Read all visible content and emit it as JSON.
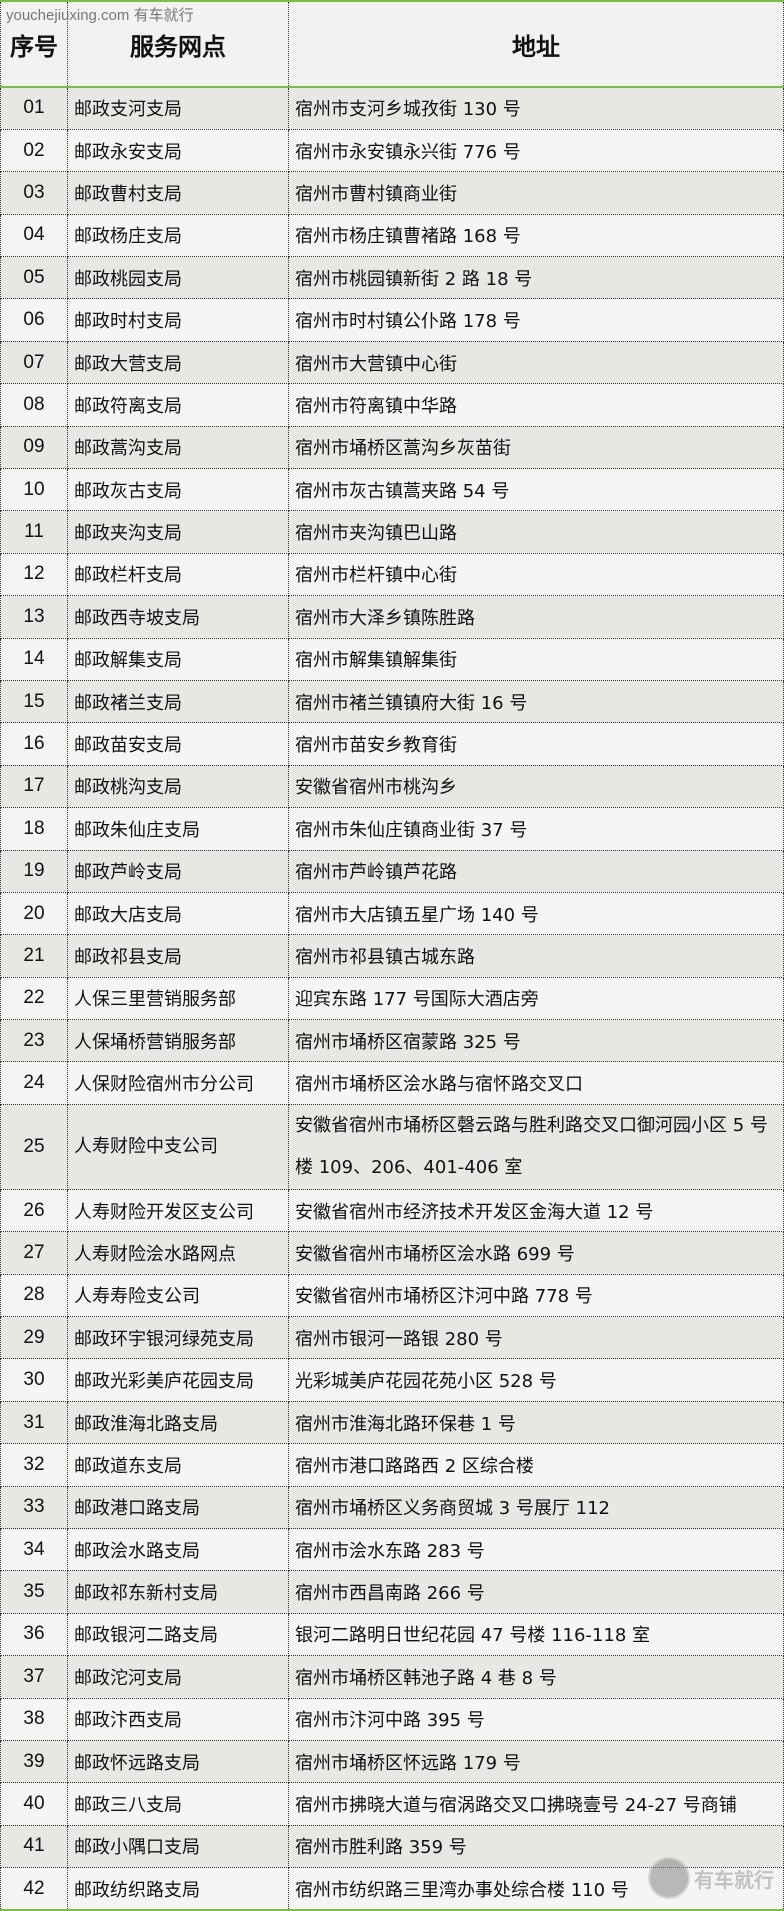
{
  "watermark": "youchejiuxing.com 有车就行",
  "logo_text": "有车就行",
  "headers": [
    "序号",
    "服务网点",
    "地址"
  ],
  "rows": [
    [
      "01",
      "邮政支河支局",
      "宿州市支河乡城孜街 130 号"
    ],
    [
      "02",
      "邮政永安支局",
      "宿州市永安镇永兴街 776 号"
    ],
    [
      "03",
      "邮政曹村支局",
      "宿州市曹村镇商业街"
    ],
    [
      "04",
      "邮政杨庄支局",
      "宿州市杨庄镇曹褚路 168 号"
    ],
    [
      "05",
      "邮政桃园支局",
      "宿州市桃园镇新街 2 路 18 号"
    ],
    [
      "06",
      "邮政时村支局",
      "宿州市时村镇公仆路 178 号"
    ],
    [
      "07",
      "邮政大营支局",
      "宿州市大营镇中心街"
    ],
    [
      "08",
      "邮政符离支局",
      "宿州市符离镇中华路"
    ],
    [
      "09",
      "邮政蒿沟支局",
      "宿州市埇桥区蒿沟乡灰苗街"
    ],
    [
      "10",
      "邮政灰古支局",
      "宿州市灰古镇蒿夹路 54 号"
    ],
    [
      "11",
      "邮政夹沟支局",
      "宿州市夹沟镇巴山路"
    ],
    [
      "12",
      "邮政栏杆支局",
      "宿州市栏杆镇中心街"
    ],
    [
      "13",
      "邮政西寺坡支局",
      "宿州市大泽乡镇陈胜路"
    ],
    [
      "14",
      "邮政解集支局",
      "宿州市解集镇解集街"
    ],
    [
      "15",
      "邮政褚兰支局",
      "宿州市褚兰镇镇府大街 16 号"
    ],
    [
      "16",
      "邮政苗安支局",
      "宿州市苗安乡教育街"
    ],
    [
      "17",
      "邮政桃沟支局",
      "安徽省宿州市桃沟乡"
    ],
    [
      "18",
      "邮政朱仙庄支局",
      "宿州市朱仙庄镇商业街 37 号"
    ],
    [
      "19",
      "邮政芦岭支局",
      "宿州市芦岭镇芦花路"
    ],
    [
      "20",
      "邮政大店支局",
      "宿州市大店镇五星广场 140 号"
    ],
    [
      "21",
      "邮政祁县支局",
      "宿州市祁县镇古城东路"
    ],
    [
      "22",
      "人保三里营销服务部",
      "迎宾东路 177 号国际大酒店旁"
    ],
    [
      "23",
      "人保埇桥营销服务部",
      "宿州市埇桥区宿蒙路 325 号"
    ],
    [
      "24",
      "人保财险宿州市分公司",
      "宿州市埇桥区浍水路与宿怀路交叉口"
    ],
    [
      "25",
      "人寿财险中支公司",
      "安徽省宿州市埇桥区磬云路与胜利路交叉口御河园小区 5 号楼 109、206、401-406 室"
    ],
    [
      "26",
      "人寿财险开发区支公司",
      "安徽省宿州市经济技术开发区金海大道 12 号"
    ],
    [
      "27",
      "人寿财险浍水路网点",
      "安徽省宿州市埇桥区浍水路 699 号"
    ],
    [
      "28",
      "人寿寿险支公司",
      "安徽省宿州市埇桥区汴河中路 778 号"
    ],
    [
      "29",
      "邮政环宇银河绿苑支局",
      "宿州市银河一路银 280 号"
    ],
    [
      "30",
      "邮政光彩美庐花园支局",
      "光彩城美庐花园花苑小区 528 号"
    ],
    [
      "31",
      "邮政淮海北路支局",
      "宿州市淮海北路环保巷 1 号"
    ],
    [
      "32",
      "邮政道东支局",
      "宿州市港口路路西 2 区综合楼"
    ],
    [
      "33",
      "邮政港口路支局",
      "宿州市埇桥区义务商贸城 3 号展厅 112"
    ],
    [
      "34",
      "邮政浍水路支局",
      "宿州市浍水东路 283 号"
    ],
    [
      "35",
      "邮政祁东新村支局",
      "宿州市西昌南路 266 号"
    ],
    [
      "36",
      "邮政银河二路支局",
      "银河二路明日世纪花园 47 号楼 116-118 室"
    ],
    [
      "37",
      "邮政沱河支局",
      "宿州市埇桥区韩池子路 4 巷 8 号"
    ],
    [
      "38",
      "邮政汴西支局",
      "宿州市汴河中路 395 号"
    ],
    [
      "39",
      "邮政怀远路支局",
      "宿州市埇桥区怀远路 179 号"
    ],
    [
      "40",
      "邮政三八支局",
      "宿州市拂晓大道与宿涡路交叉口拂晓壹号 24-27 号商铺"
    ],
    [
      "41",
      "邮政小隅口支局",
      "宿州市胜利路 359 号"
    ],
    [
      "42",
      "邮政纺织路支局",
      "宿州市纺织路三里湾办事处综合楼 110 号"
    ]
  ]
}
